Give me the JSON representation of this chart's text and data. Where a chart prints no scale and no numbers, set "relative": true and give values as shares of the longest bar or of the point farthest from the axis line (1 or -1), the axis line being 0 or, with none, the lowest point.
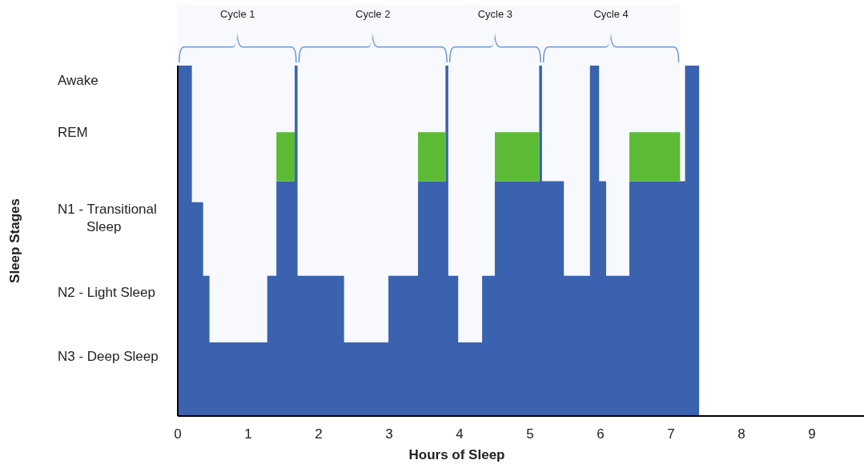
{
  "chart_data": {
    "type": "area",
    "xlabel": "Hours of Sleep",
    "stacked": true,
    "relative": true,
    "x": [
      0,
      0.2,
      0.2,
      0.36,
      0.36,
      0.45,
      0.45,
      1.27,
      1.27,
      1.4,
      1.4,
      1.66,
      1.66,
      1.7,
      1.7,
      2.36,
      2.36,
      2.99,
      2.99,
      3.41,
      3.41,
      3.8,
      3.8,
      3.84,
      3.84,
      3.98,
      3.98,
      4.32,
      4.32,
      4.5,
      4.5,
      5.13,
      5.13,
      5.17,
      5.17,
      5.48,
      5.48,
      5.85,
      5.85,
      5.98,
      5.98,
      6.08,
      6.08,
      6.41,
      6.41,
      7.13,
      7.13,
      7.2,
      7.2,
      7.4
    ],
    "series": [
      {
        "color": "#3a62ae",
        "values": [
          1,
          1,
          0.61,
          0.61,
          0.4,
          0.4,
          0.21,
          0.21,
          0.4,
          0.4,
          0.67,
          0.67,
          1,
          1,
          0.4,
          0.4,
          0.21,
          0.21,
          0.4,
          0.4,
          0.67,
          0.67,
          1,
          1,
          0.4,
          0.4,
          0.21,
          0.21,
          0.4,
          0.4,
          0.67,
          0.67,
          1,
          1,
          0.67,
          0.67,
          0.4,
          0.4,
          1,
          1,
          0.67,
          0.67,
          0.4,
          0.4,
          0.67,
          0.67,
          0.67,
          0.67,
          1,
          1
        ]
      },
      {
        "color": "#5bbb35",
        "values": [
          0,
          0,
          0,
          0,
          0,
          0,
          0,
          0,
          0,
          0,
          0.14,
          0.14,
          0,
          0,
          0,
          0,
          0,
          0,
          0,
          0,
          0.14,
          0.14,
          0,
          0,
          0,
          0,
          0,
          0,
          0,
          0,
          0.14,
          0.14,
          0,
          0,
          0,
          0,
          0,
          0,
          0,
          0,
          0,
          0,
          0,
          0,
          0.14,
          0.14,
          0,
          0,
          0,
          0
        ]
      }
    ],
    "xlim": [
      0,
      9.74
    ],
    "xticks": [
      0,
      1,
      2,
      3,
      4,
      5,
      6,
      7,
      8,
      9
    ],
    "annotations": [
      "Awake",
      "REM",
      "N1 - Transitional Sleep",
      "N2 - Light Sleep",
      "N3 - Deep Sleep",
      "Sleep Stages"
    ],
    "bands": [
      {
        "axis": "x",
        "from": 0,
        "to": 1.7,
        "label": "Cycle 1",
        "color": "#6f9ad8"
      },
      {
        "axis": "x",
        "from": 1.7,
        "to": 3.84,
        "label": "Cycle 2",
        "color": "#6f9ad8"
      },
      {
        "axis": "x",
        "from": 3.84,
        "to": 5.17,
        "label": "Cycle 3",
        "color": "#6f9ad8"
      },
      {
        "axis": "x",
        "from": 5.17,
        "to": 7.13,
        "label": "Cycle 4",
        "color": "#6f9ad8"
      }
    ]
  }
}
